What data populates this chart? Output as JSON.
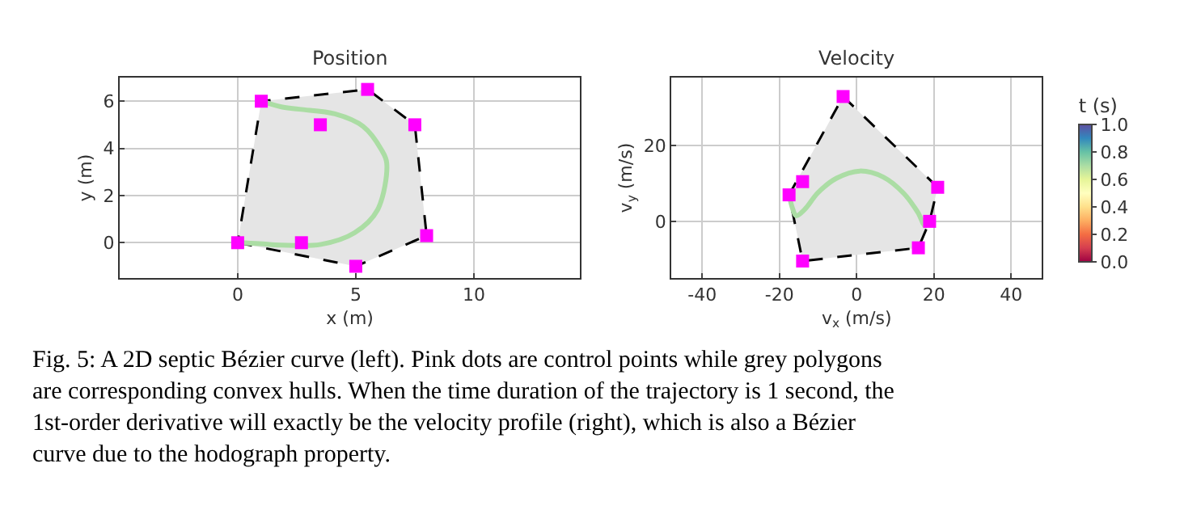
{
  "chart_data": [
    {
      "type": "scatter",
      "title": "Position",
      "xlabel": "x (m)",
      "ylabel": "y (m)",
      "xlim": [
        -5,
        14.5
      ],
      "ylim": [
        -1.5,
        7
      ],
      "xticks": [
        0,
        5,
        10
      ],
      "yticks": [
        0,
        2,
        4,
        6
      ],
      "grid": true,
      "series": [
        {
          "type": "area",
          "color": "#e5e5e5",
          "line_style": "dashed",
          "x": [
            0,
            5,
            8,
            7.5,
            5.5,
            1,
            0
          ],
          "values": [
            0,
            -1,
            0.3,
            5,
            6.5,
            6,
            0
          ]
        },
        {
          "type": "line",
          "color": "#abdda4",
          "x": [
            0,
            0.93,
            1.83,
            3.53,
            4.95,
            5.92,
            6.31,
            6.08,
            5.31,
            4.12,
            2.61,
            1.85,
            1
          ],
          "values": [
            0,
            -0.04,
            -0.1,
            -0.07,
            0.42,
            1.39,
            3.38,
            3.95,
            4.93,
            5.46,
            5.66,
            5.76,
            6
          ]
        },
        {
          "type": "scatter",
          "marker": "square",
          "color": "#ff00ff",
          "x": [
            0,
            2.7,
            5,
            8,
            7.5,
            5.5,
            3.5,
            1
          ],
          "values": [
            0,
            0,
            -1,
            0.3,
            5,
            6.5,
            5,
            6
          ]
        }
      ],
      "annotations": [
        "Fig. 5: A 2D septic Bézier curve (left). Pink dots are control points while grey polygons are corresponding convex hulls. When the time duration of the trajectory is 1 second, the 1st-order derivative will exactly be the velocity profile (right), which is also a Bézier curve due to the hodograph property."
      ]
    },
    {
      "type": "scatter",
      "title": "Velocity",
      "xlabel": "v$_{x}$ (m/s)",
      "ylabel": "v$_{y}$ (m/s)",
      "xlim": [
        -48,
        48
      ],
      "ylim": [
        -15,
        38
      ],
      "xticks": [
        -40,
        -20,
        0,
        20,
        40
      ],
      "yticks": [
        0,
        20
      ],
      "grid": true,
      "clabel": "t (s)",
      "clim": [
        0,
        1
      ],
      "cticks": [
        {
          "value": 0,
          "label": "0.0"
        },
        0.2,
        0.4,
        0.6,
        0.8,
        {
          "value": 1,
          "label": "1.0"
        }
      ],
      "series": [
        {
          "type": "area",
          "color": "#e5e5e5",
          "line_style": "dashed",
          "x": [
            -3.5,
            21,
            18.9,
            16,
            -14,
            -17.5,
            -3.5
          ],
          "values": [
            33,
            9,
            0,
            -7,
            -10.5,
            7,
            33
          ]
        },
        {
          "type": "line",
          "color": "#abdda4",
          "x": [
            18.9,
            17.7,
            15.9,
            12.2,
            6.9,
            0.8,
            -5.2,
            -10,
            -13.5,
            -15.7,
            -16.5,
            -17.5
          ],
          "values": [
            0,
            -1.1,
            2.3,
            7.4,
            11.7,
            13.3,
            11.4,
            7.6,
            3.1,
            1.5,
            3.1,
            7
          ]
        },
        {
          "type": "scatter",
          "marker": "square",
          "color": "#ff00ff",
          "x": [
            18.9,
            16,
            21,
            -3.5,
            -14,
            -14,
            -17.5
          ],
          "values": [
            0,
            -7,
            9,
            33,
            10.5,
            -10.5,
            7
          ]
        }
      ]
    }
  ]
}
